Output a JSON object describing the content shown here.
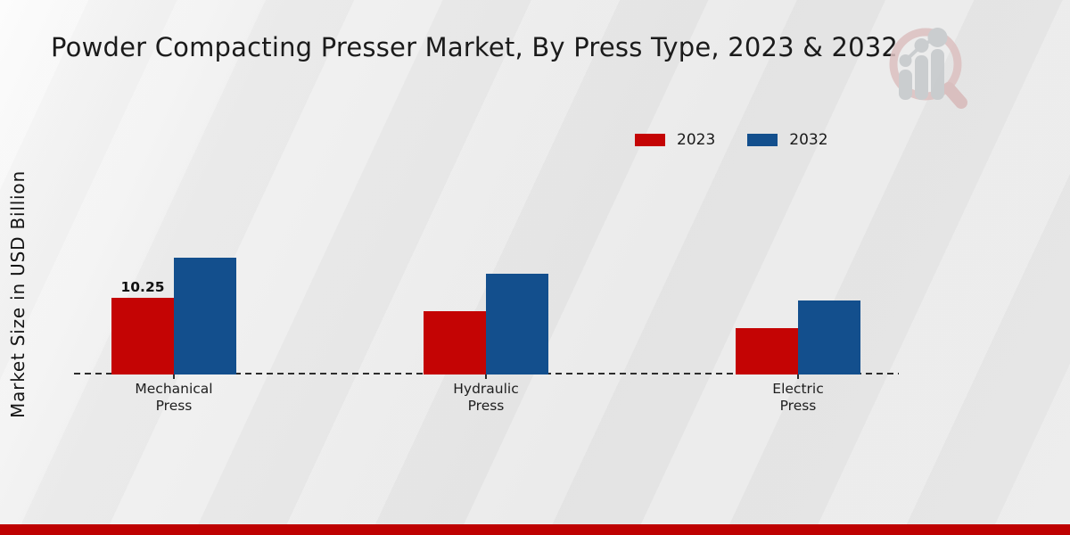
{
  "chart_data": {
    "type": "bar",
    "title": "Powder Compacting Presser Market, By Press Type, 2023 & 2032",
    "categories": [
      "Mechanical Press",
      "Hydraulic Press",
      "Electric Press"
    ],
    "series": [
      {
        "name": "2023",
        "color": "#c40404",
        "values": [
          10.25,
          8.5,
          6.2
        ]
      },
      {
        "name": "2032",
        "color": "#134f8d",
        "values": [
          15.6,
          13.5,
          9.9
        ]
      }
    ],
    "xlabel": "",
    "ylabel": "Market Size in USD Billion",
    "ylim": [
      0,
      17
    ],
    "grid": false,
    "legend_position": "upper center",
    "baseline_style": "dashed",
    "annotations": [
      {
        "series": "2023",
        "category": "Mechanical Press",
        "text": "10.25"
      }
    ]
  },
  "footer": {
    "stripe_color": "#be0101"
  },
  "logo": {
    "name": "market-research-magnifier-logo",
    "ring_color": "#dcc0c0",
    "bars_color": "#c5c8cb"
  }
}
